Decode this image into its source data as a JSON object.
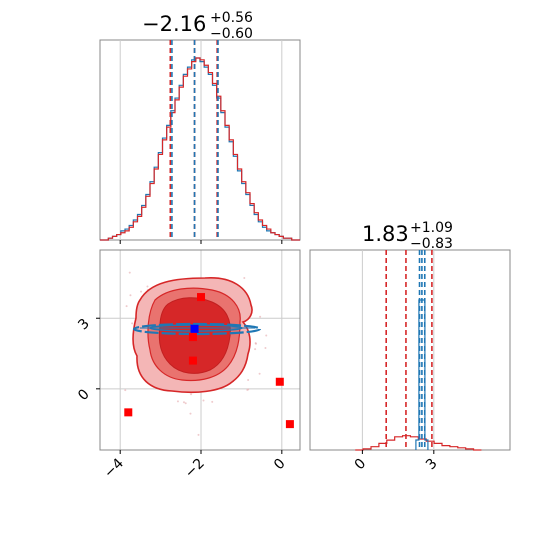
{
  "chart_data": {
    "type": "corner",
    "parameters": [
      {
        "title_value": "−2.16",
        "title_upper": "+0.56",
        "title_lower": "−0.60",
        "median": -2.16,
        "upper_err": 0.56,
        "lower_err": 0.6,
        "xlim": [
          -4.5,
          0.45
        ],
        "ticks": [
          -4,
          -2,
          0
        ],
        "tick_labels": [
          "−4",
          "−2",
          "0"
        ]
      },
      {
        "title_value": "1.83",
        "title_upper": "+1.09",
        "title_lower": "−0.83",
        "median": 1.83,
        "upper_err": 1.09,
        "lower_err": 0.83,
        "xlim": [
          -2.2,
          6.2
        ],
        "ylim": [
          -2.6,
          5.9
        ],
        "ticks": [
          0,
          3
        ],
        "tick_labels": [
          "0",
          "3"
        ]
      }
    ],
    "series": [
      {
        "name": "",
        "color": "#d62728",
        "quantile_lines_p1": [
          -2.76,
          -2.16,
          -1.6
        ],
        "quantile_lines_p2": [
          1.0,
          1.83,
          2.92
        ],
        "hist_p1": [
          0.0,
          0.0,
          0.01,
          0.02,
          0.03,
          0.04,
          0.05,
          0.07,
          0.1,
          0.13,
          0.18,
          0.24,
          0.31,
          0.39,
          0.47,
          0.55,
          0.62,
          0.7,
          0.77,
          0.84,
          0.9,
          0.94,
          0.98,
          1.0,
          0.99,
          0.96,
          0.92,
          0.86,
          0.79,
          0.71,
          0.63,
          0.55,
          0.47,
          0.39,
          0.32,
          0.26,
          0.2,
          0.15,
          0.11,
          0.08,
          0.06,
          0.04,
          0.03,
          0.02,
          0.01,
          0.01,
          0.0,
          0.0
        ],
        "hist_p2": [
          0.0,
          0.01,
          0.03,
          0.06,
          0.09,
          0.12,
          0.13,
          0.12,
          0.1,
          0.08,
          0.06,
          0.04,
          0.03,
          0.02,
          0.01,
          0.0
        ]
      },
      {
        "name": "",
        "color": "#1f77b4",
        "quantile_lines_p1": [
          -2.72,
          -2.16,
          -1.58
        ],
        "quantile_lines_p2": [
          2.4,
          2.5,
          2.62
        ],
        "hist_p1": [
          0.0,
          0.0,
          0.01,
          0.02,
          0.03,
          0.05,
          0.06,
          0.08,
          0.11,
          0.14,
          0.19,
          0.25,
          0.32,
          0.4,
          0.48,
          0.56,
          0.63,
          0.71,
          0.78,
          0.85,
          0.91,
          0.95,
          0.99,
          1.0,
          0.98,
          0.95,
          0.91,
          0.85,
          0.78,
          0.7,
          0.62,
          0.54,
          0.46,
          0.38,
          0.31,
          0.25,
          0.19,
          0.14,
          0.1,
          0.07,
          0.05,
          0.04,
          0.03,
          0.02,
          0.01,
          0.01,
          0.0,
          0.0
        ],
        "hist_p2_peak": 2.5
      }
    ],
    "markers": {
      "red_squares": [
        [
          -2.0,
          3.9
        ],
        [
          -2.2,
          2.2
        ],
        [
          -2.2,
          1.2
        ],
        [
          -0.05,
          0.3
        ],
        [
          0.2,
          -1.5
        ],
        [
          -3.8,
          -1.0
        ]
      ],
      "blue_square": [
        -2.16,
        2.55
      ]
    },
    "grid": true,
    "legend": "none"
  }
}
